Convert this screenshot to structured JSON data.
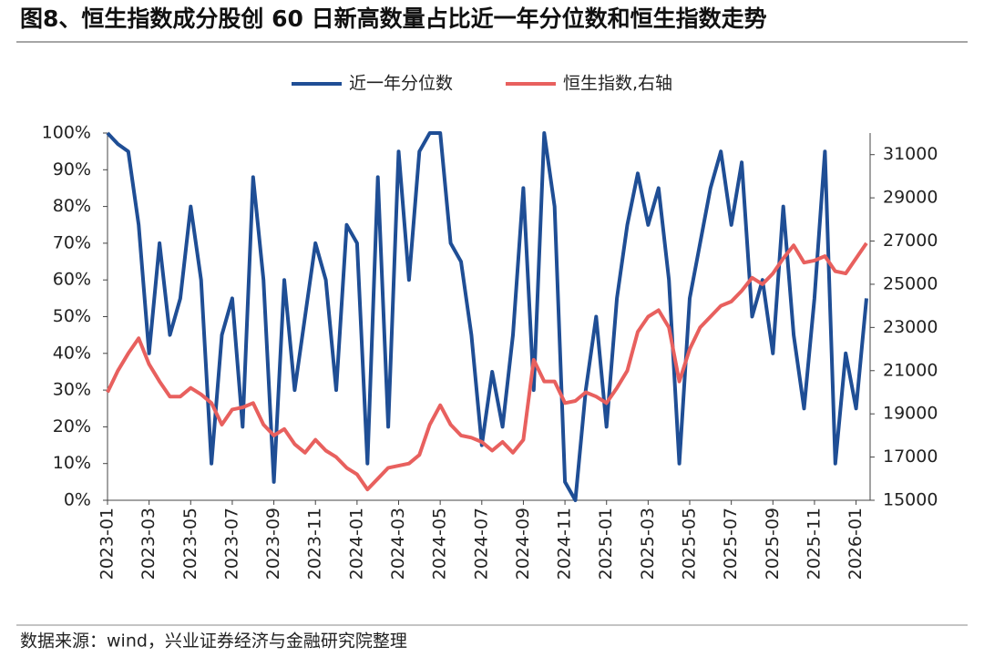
{
  "chart_data": {
    "type": "line",
    "title": "图8、恒生指数成分股创 60 日新高数量占比近一年分位数和恒生指数走势",
    "source": "数据来源：wind，兴业证券经济与金融研究院整理",
    "x": [
      "2023-01",
      "2023-01",
      "2023-02",
      "2023-02",
      "2023-03",
      "2023-03",
      "2023-04",
      "2023-04",
      "2023-05",
      "2023-05",
      "2023-06",
      "2023-06",
      "2023-07",
      "2023-07",
      "2023-08",
      "2023-08",
      "2023-09",
      "2023-09",
      "2023-10",
      "2023-10",
      "2023-11",
      "2023-11",
      "2023-12",
      "2023-12",
      "2024-01",
      "2024-01",
      "2024-02",
      "2024-02",
      "2024-03",
      "2024-03",
      "2024-04",
      "2024-04",
      "2024-05",
      "2024-05",
      "2024-06",
      "2024-06",
      "2024-07",
      "2024-07",
      "2024-08",
      "2024-08",
      "2024-09",
      "2024-09",
      "2024-10",
      "2024-10",
      "2024-11",
      "2024-11",
      "2024-12",
      "2024-12",
      "2025-01",
      "2025-01",
      "2025-02",
      "2025-02",
      "2025-03",
      "2025-03",
      "2025-04",
      "2025-04",
      "2025-05",
      "2025-05",
      "2025-06",
      "2025-06",
      "2025-07",
      "2025-07",
      "2025-08",
      "2025-08",
      "2025-09",
      "2025-09",
      "2025-10",
      "2025-10",
      "2025-11",
      "2025-11",
      "2025-12",
      "2025-12",
      "2026-01",
      "2026-01"
    ],
    "xticks": [
      "2023-01",
      "2023-03",
      "2023-05",
      "2023-07",
      "2023-09",
      "2023-11",
      "2024-01",
      "2024-03",
      "2024-05",
      "2024-07",
      "2024-09",
      "2024-11",
      "2025-01",
      "2025-03",
      "2025-05",
      "2025-07",
      "2025-09",
      "2025-11",
      "2026-01"
    ],
    "series": [
      {
        "name": "近一年分位数",
        "color": "#1f4e95",
        "values": [
          100,
          97,
          95,
          75,
          40,
          70,
          45,
          55,
          80,
          60,
          10,
          45,
          55,
          20,
          88,
          60,
          5,
          60,
          30,
          50,
          70,
          60,
          30,
          75,
          70,
          10,
          88,
          20,
          95,
          60,
          95,
          100,
          100,
          70,
          65,
          45,
          15,
          35,
          20,
          45,
          85,
          30,
          100,
          80,
          5,
          0,
          30,
          50,
          20,
          55,
          75,
          89,
          75,
          85,
          60,
          10,
          55,
          70,
          85,
          95,
          75,
          92,
          50,
          60,
          40,
          80,
          45,
          25,
          55,
          95,
          10,
          40,
          25,
          55
        ]
      },
      {
        "name": "恒生指数,右轴",
        "color": "#e8605e",
        "axis": "y2",
        "values": [
          20000,
          21000,
          21800,
          22500,
          21300,
          20500,
          19800,
          19800,
          20200,
          19900,
          19500,
          18500,
          19200,
          19300,
          19500,
          18500,
          18000,
          18300,
          17600,
          17200,
          17800,
          17300,
          17000,
          16500,
          16200,
          15500,
          16000,
          16500,
          16600,
          16700,
          17100,
          18500,
          19400,
          18500,
          18000,
          17900,
          17700,
          17300,
          17700,
          17200,
          17800,
          21500,
          20500,
          20500,
          19500,
          19600,
          20000,
          19800,
          19500,
          20200,
          21000,
          22800,
          23500,
          23800,
          23000,
          20500,
          22000,
          23000,
          23500,
          24000,
          24200,
          24700,
          25300,
          25000,
          25500,
          26200,
          26800,
          26000,
          26100,
          26300,
          25600,
          25500,
          26200,
          26900
        ]
      }
    ],
    "ylim": [
      0,
      100
    ],
    "yticks": [
      {
        "value": 0,
        "label": "0%"
      },
      {
        "value": 10,
        "label": "10%"
      },
      {
        "value": 20,
        "label": "20%"
      },
      {
        "value": 30,
        "label": "30%"
      },
      {
        "value": 40,
        "label": "40%"
      },
      {
        "value": 50,
        "label": "50%"
      },
      {
        "value": 60,
        "label": "60%"
      },
      {
        "value": 70,
        "label": "70%"
      },
      {
        "value": 80,
        "label": "80%"
      },
      {
        "value": 90,
        "label": "90%"
      },
      {
        "value": 100,
        "label": "100%"
      }
    ],
    "y2lim": [
      15000,
      32000
    ],
    "y2ticks": [
      15000,
      17000,
      19000,
      21000,
      23000,
      25000,
      27000,
      29000,
      31000
    ],
    "legend": "top"
  }
}
